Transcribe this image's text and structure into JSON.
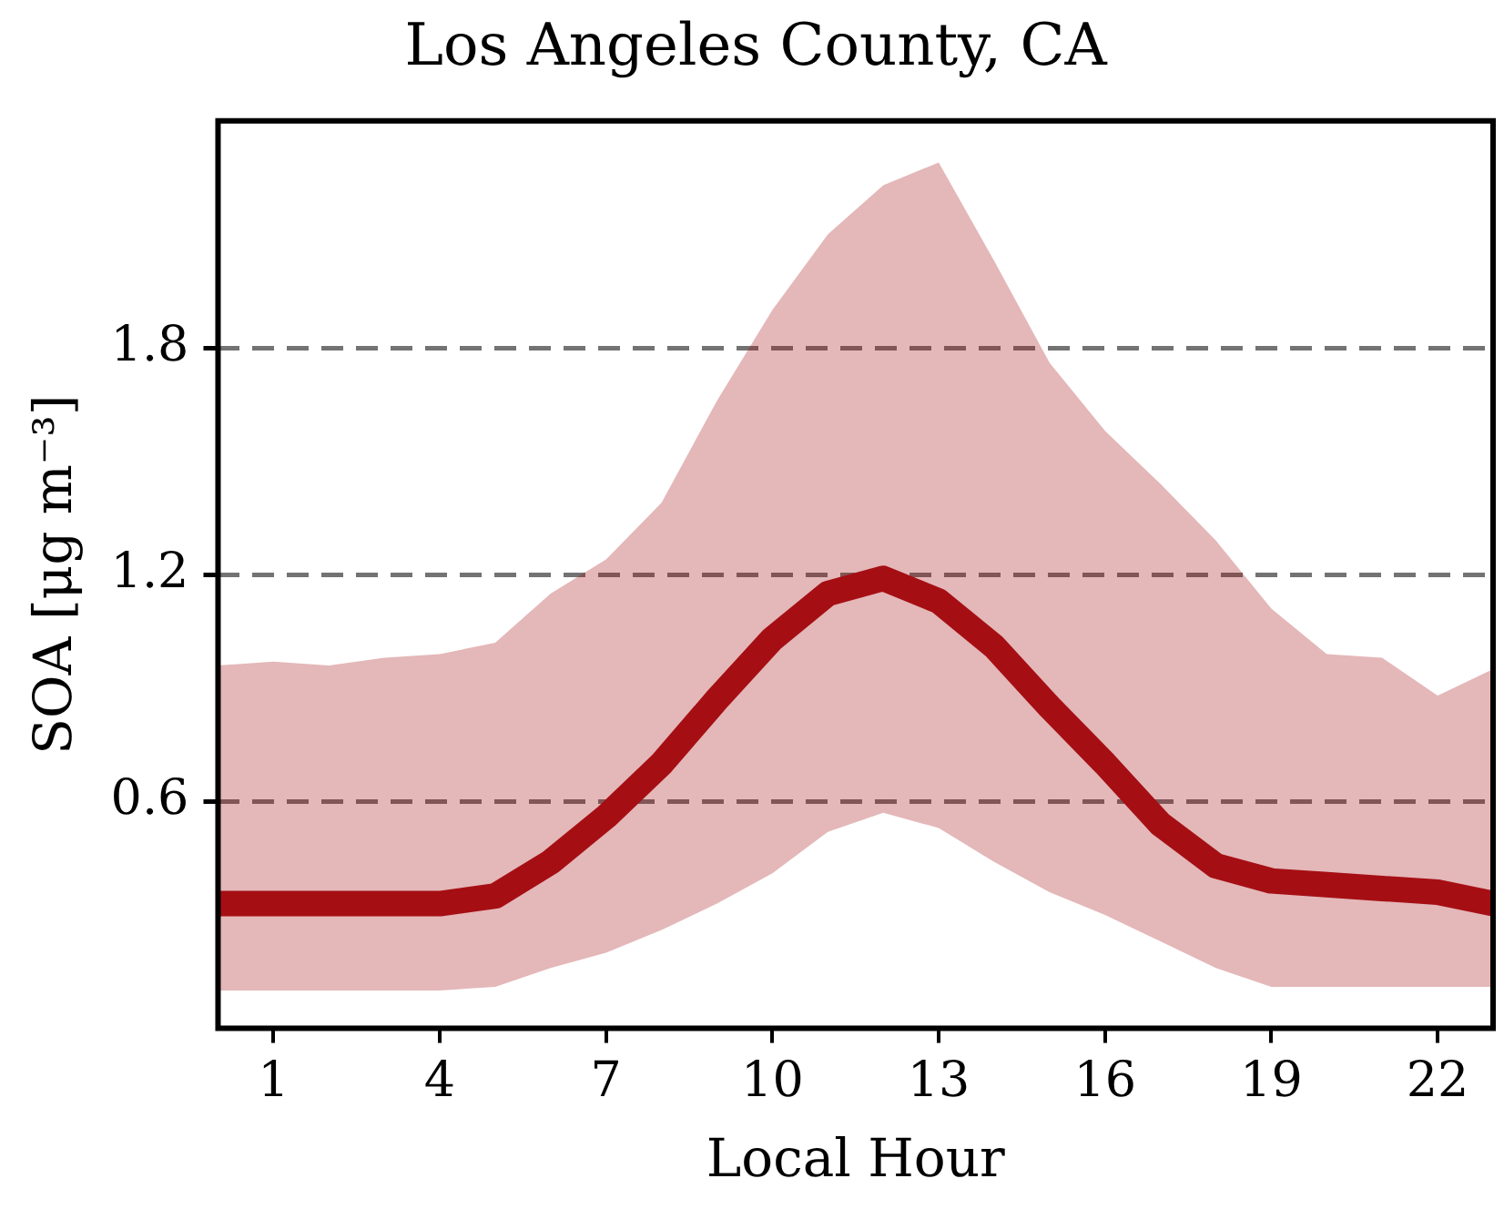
{
  "chart_data": {
    "type": "line",
    "title": "Los Angeles County, CA",
    "xlabel": "Local Hour",
    "ylabel": "SOA [μg m⁻³]",
    "x": [
      0,
      1,
      2,
      3,
      4,
      5,
      6,
      7,
      8,
      9,
      10,
      11,
      12,
      13,
      14,
      15,
      16,
      17,
      18,
      19,
      20,
      21,
      22,
      23
    ],
    "series": [
      {
        "color": "#a50f15",
        "values": [
          0.33,
          0.33,
          0.33,
          0.33,
          0.33,
          0.35,
          0.44,
          0.56,
          0.7,
          0.87,
          1.03,
          1.15,
          1.19,
          1.13,
          1.01,
          0.85,
          0.7,
          0.54,
          0.43,
          0.39,
          0.38,
          0.37,
          0.36,
          0.33
        ],
        "lower": [
          0.1,
          0.1,
          0.1,
          0.1,
          0.1,
          0.11,
          0.16,
          0.2,
          0.26,
          0.33,
          0.41,
          0.52,
          0.57,
          0.53,
          0.44,
          0.36,
          0.3,
          0.23,
          0.16,
          0.11,
          0.11,
          0.11,
          0.11,
          0.11
        ],
        "upper": [
          0.96,
          0.97,
          0.96,
          0.98,
          0.99,
          1.02,
          1.15,
          1.24,
          1.39,
          1.66,
          1.9,
          2.1,
          2.23,
          2.29,
          2.03,
          1.76,
          1.58,
          1.44,
          1.29,
          1.11,
          0.99,
          0.98,
          0.88,
          0.95
        ]
      }
    ],
    "xlim": [
      0,
      23
    ],
    "xticks": [
      1,
      4,
      7,
      10,
      13,
      16,
      19,
      22
    ],
    "ylim": [
      0,
      2.4
    ],
    "yticks": [
      0.6,
      1.2,
      1.8
    ],
    "grid": "y",
    "legend": false,
    "marker": "none",
    "line_style": "solid"
  }
}
